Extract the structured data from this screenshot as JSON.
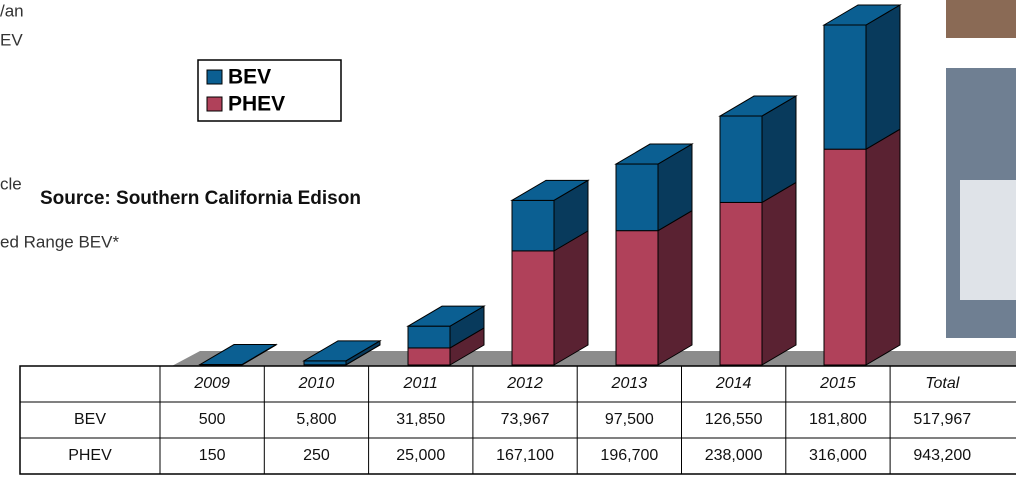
{
  "chart_data": {
    "type": "bar3d_stacked",
    "source": "Source: Southern California Edison",
    "categories": [
      "2009",
      "2010",
      "2011",
      "2012",
      "2013",
      "2014",
      "2015"
    ],
    "total_category": "Total",
    "series": [
      {
        "name": "BEV",
        "color": "#0b5f92",
        "side_color": "#083a5c",
        "values": [
          500,
          5800,
          31850,
          73967,
          97500,
          126550,
          181800
        ],
        "value_labels": [
          "500",
          "5,800",
          "31,850",
          "73,967",
          "97,500",
          "126,550",
          "181,800"
        ],
        "total": 517967,
        "total_label": "517,967"
      },
      {
        "name": "PHEV",
        "color": "#b0415a",
        "side_color": "#5a2232",
        "values": [
          150,
          250,
          25000,
          167100,
          196700,
          238000,
          316000
        ],
        "value_labels": [
          "150",
          "250",
          "25,000",
          "167,100",
          "196,700",
          "238,000",
          "316,000"
        ],
        "total": 943200,
        "total_label": "943,200"
      }
    ],
    "side_texts": [
      "/an",
      "EV",
      "cle",
      "ed Range BEV*"
    ]
  }
}
